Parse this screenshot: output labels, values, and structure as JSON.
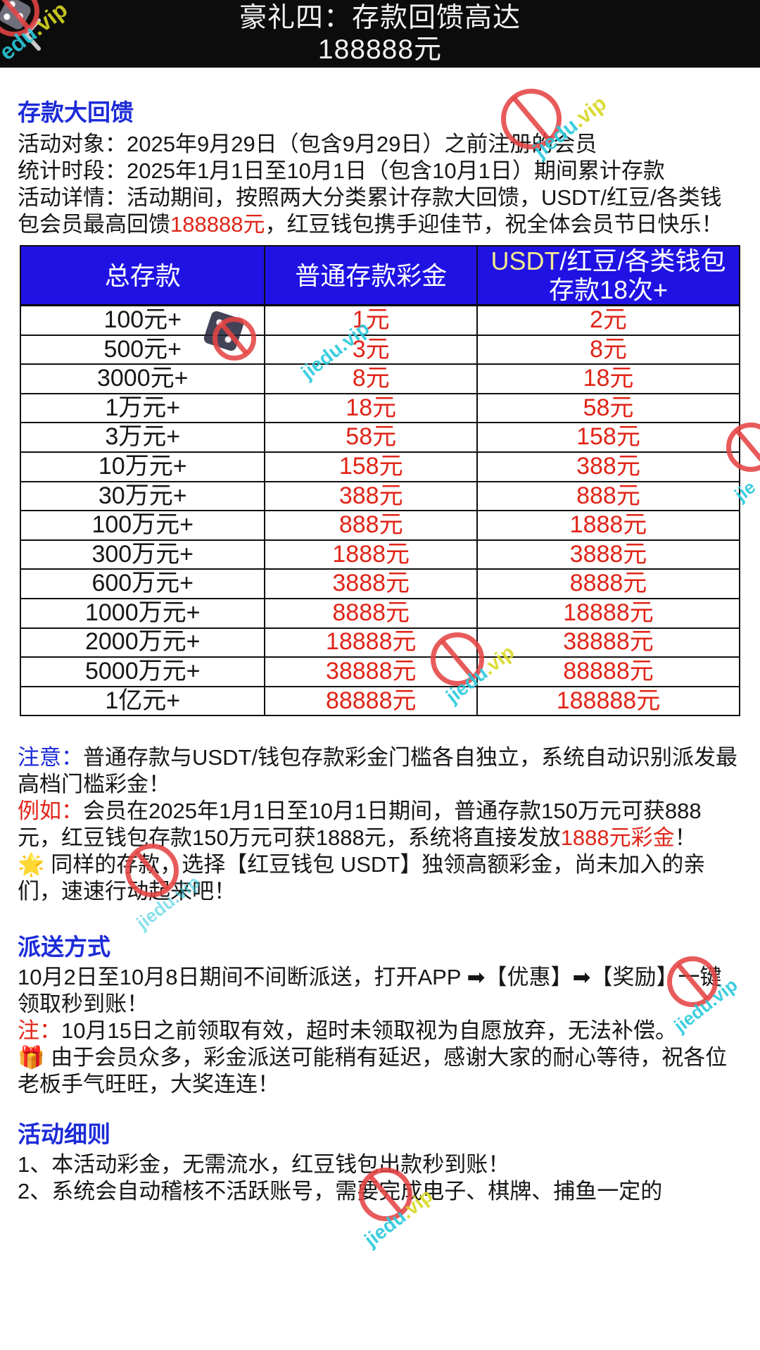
{
  "app_header": {
    "title_line1": "豪礼四：存款回馈高达",
    "title_line2": "188888元",
    "back_icon": "chevron-left"
  },
  "intro": {
    "heading": "存款大回馈",
    "p_target": "活动对象：2025年9月29日（包含9月29日）之前注册的会员",
    "p_period": "统计时段：2025年1月1日至10月1日（包含10月1日）期间累计存款",
    "p_detail_before": "活动详情：活动期间，按照两大分类累计存款大回馈，USDT/红豆/各类钱包会员最高回馈",
    "p_detail_red": "188888元",
    "p_detail_after": "，红豆钱包携手迎佳节，祝全体会员节日快乐！"
  },
  "table": {
    "col1": "总存款",
    "col2": "普通存款彩金",
    "col3_usdt": "USDT",
    "col3_rest": "/红豆/各类钱包存款18次+",
    "rows": [
      [
        "100元+",
        "1元",
        "2元"
      ],
      [
        "500元+",
        "3元",
        "8元"
      ],
      [
        "3000元+",
        "8元",
        "18元"
      ],
      [
        "1万元+",
        "18元",
        "58元"
      ],
      [
        "3万元+",
        "58元",
        "158元"
      ],
      [
        "10万元+",
        "158元",
        "388元"
      ],
      [
        "30万元+",
        "388元",
        "888元"
      ],
      [
        "100万元+",
        "888元",
        "1888元"
      ],
      [
        "300万元+",
        "1888元",
        "3888元"
      ],
      [
        "600万元+",
        "3888元",
        "8888元"
      ],
      [
        "1000万元+",
        "8888元",
        "18888元"
      ],
      [
        "2000万元+",
        "18888元",
        "38888元"
      ],
      [
        "5000万元+",
        "38888元",
        "88888元"
      ],
      [
        "1亿元+",
        "88888元",
        "188888元"
      ]
    ]
  },
  "notice": {
    "label": "注意：",
    "text": "普通存款与USDT/钱包存款彩金门槛各自独立，系统自动识别派发最高档门槛彩金！",
    "example_label": "例如：",
    "example_text": "会员在2025年1月1日至10月1日期间，普通存款150万元可获888元，红豆钱包存款150万元可获1888元，系统将直接发放",
    "example_red": "1888元彩金",
    "example_tail": "！",
    "star_emoji": "🌟",
    "star_text": " 同样的存款，选择【红豆钱包 USDT】独领高额彩金，尚未加入的亲们，速速行动起来吧！"
  },
  "delivery": {
    "heading": "派送方式",
    "p1": "10月2日至10月8日期间不间断派送，打开APP ➡【优惠】➡【奖励】一键领取秒到账！",
    "note_label": "注：",
    "note_text": "10月15日之前领取有效，超时未领取视为自愿放弃，无法补偿。",
    "gift_emoji": "🎁",
    "gift_text": " 由于会员众多，彩金派送可能稍有延迟，感谢大家的耐心等待，祝各位老板手气旺旺，大奖连连！"
  },
  "rules": {
    "heading": "活动细则",
    "items": [
      "1、本活动彩金，无需流水，红豆钱包出款秒到账！",
      "2、系统会自动稽核不活跃账号，需要完成电子、棋牌、捕鱼一定的"
    ]
  },
  "watermarks": {
    "site_full": "jiedu.vip",
    "site_cyan": "jiedu",
    "site_yellow": ".vip",
    "corner_cyan": "edu",
    "corner_yellow": ".vip",
    "site_short": "jie"
  },
  "colors": {
    "accent_blue": "#1c2bd8",
    "table_header_bg": "#1f12e3",
    "value_red": "#e02418",
    "usdt_yellow": "#f2e88e",
    "watermark_cyan": "#29c9dc",
    "watermark_yellow": "#d8d822",
    "ban_red": "#e54444",
    "header_bg": "#0c0c0c"
  }
}
